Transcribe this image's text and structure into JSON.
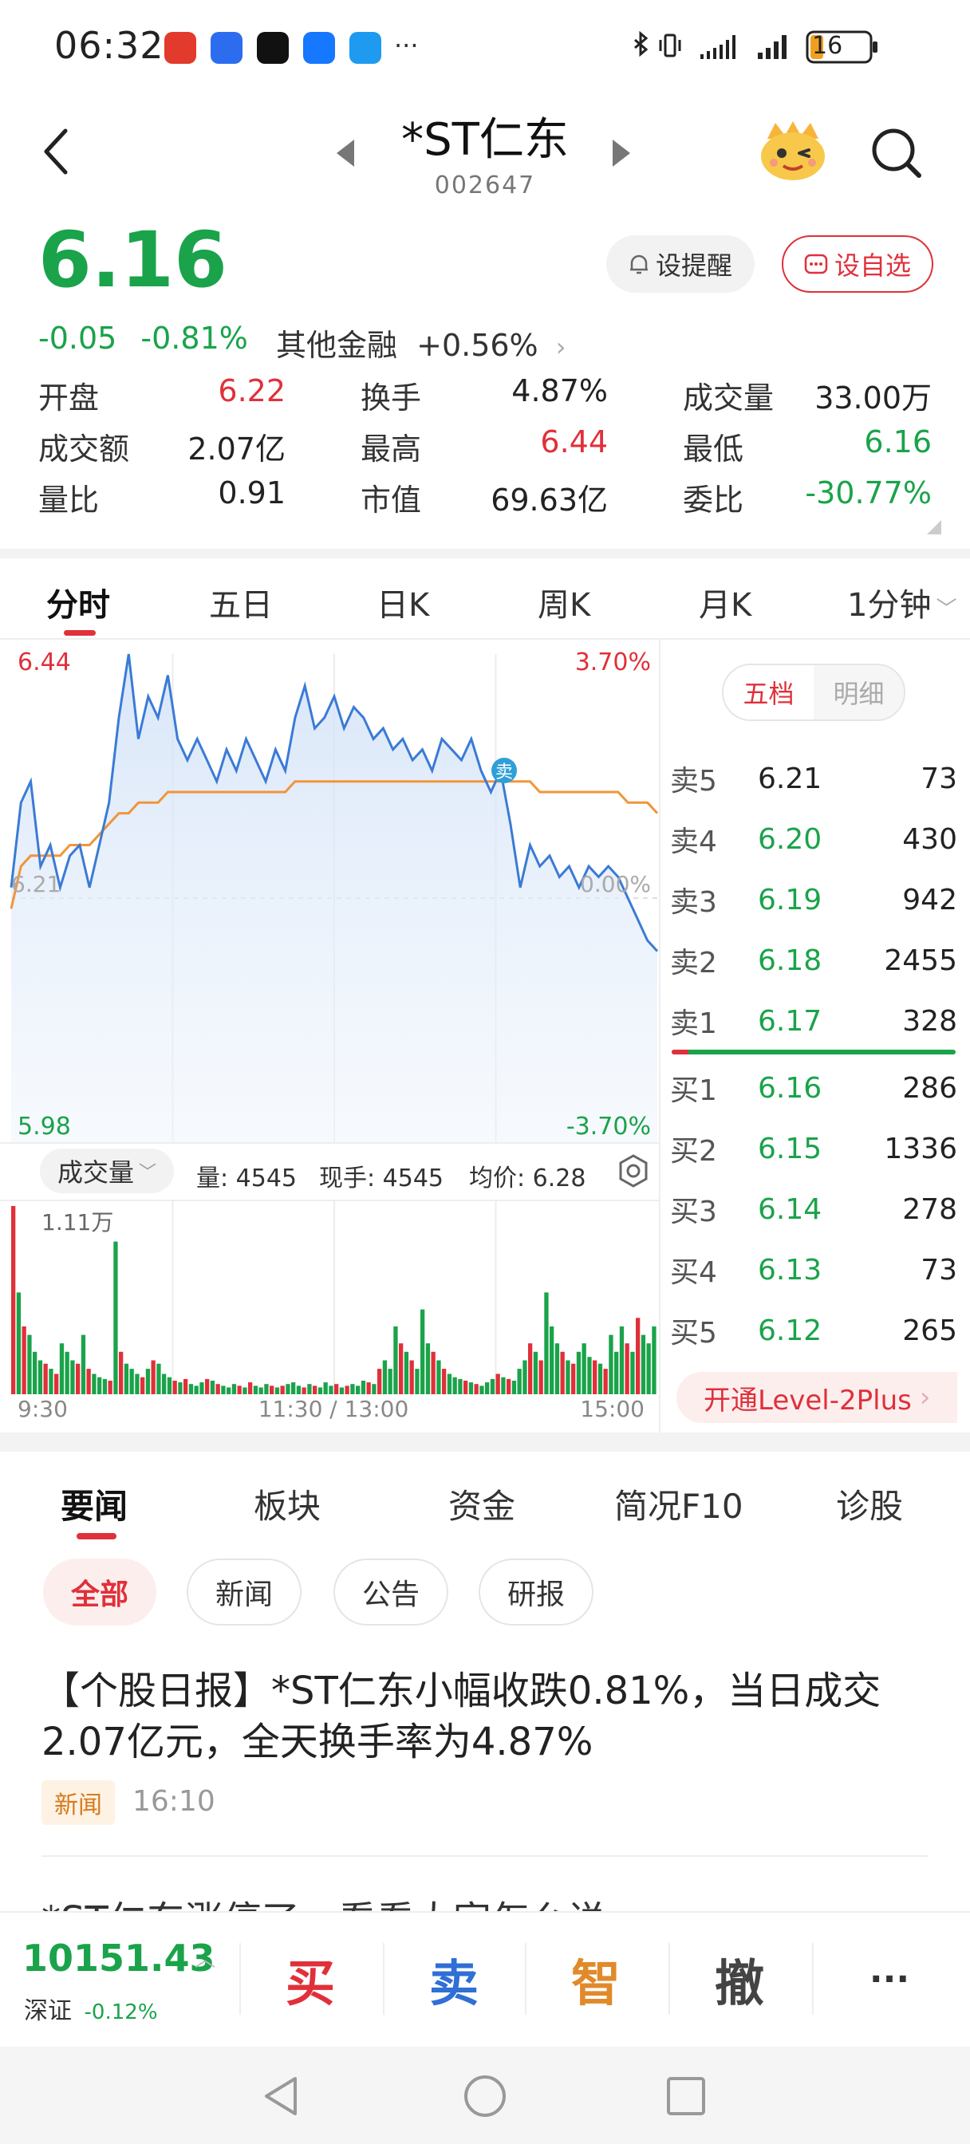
{
  "status": {
    "time": "06:32",
    "dots": "···",
    "battery": "16"
  },
  "header": {
    "title": "*ST仁东",
    "code": "002647"
  },
  "quote": {
    "price": "6.16",
    "change": "-0.05",
    "change_pct": "-0.81%",
    "sector": "其他金融",
    "sector_pct": "+0.56%",
    "remind_label": "设提醒",
    "watch_label": "设自选",
    "stats": [
      {
        "label": "开盘",
        "value": "6.22",
        "color": "#e0303a"
      },
      {
        "label": "换手",
        "value": "4.87%",
        "color": "#222222"
      },
      {
        "label": "成交量",
        "value": "33.00万",
        "color": "#222222"
      },
      {
        "label": "成交额",
        "value": "2.07亿",
        "color": "#222222"
      },
      {
        "label": "最高",
        "value": "6.44",
        "color": "#e0303a"
      },
      {
        "label": "最低",
        "value": "6.16",
        "color": "#1aa34a"
      },
      {
        "label": "量比",
        "value": "0.91",
        "color": "#222222"
      },
      {
        "label": "市值",
        "value": "69.63亿",
        "color": "#222222"
      },
      {
        "label": "委比",
        "value": "-30.77%",
        "color": "#1aa34a"
      }
    ]
  },
  "chart_tabs": [
    "分时",
    "五日",
    "日K",
    "周K",
    "月K",
    "1分钟"
  ],
  "chart_data": {
    "type": "line",
    "y_high_label": "6.44",
    "y_mid_label": "6.21",
    "y_low_label": "5.98",
    "pct_high_label": "3.70%",
    "pct_mid_label": "0.00%",
    "pct_low_label": "-3.70%",
    "ylim": [
      5.98,
      6.44
    ],
    "x_labels": [
      "9:30",
      "11:30 / 13:00",
      "15:00"
    ],
    "sell_marker": "卖",
    "price_series": [
      6.22,
      6.3,
      6.32,
      6.24,
      6.26,
      6.22,
      6.25,
      6.26,
      6.22,
      6.26,
      6.3,
      6.38,
      6.44,
      6.36,
      6.4,
      6.38,
      6.42,
      6.36,
      6.34,
      6.36,
      6.34,
      6.32,
      6.35,
      6.33,
      6.36,
      6.34,
      6.32,
      6.35,
      6.33,
      6.38,
      6.41,
      6.37,
      6.38,
      6.4,
      6.37,
      6.39,
      6.38,
      6.36,
      6.37,
      6.35,
      6.36,
      6.34,
      6.35,
      6.33,
      6.36,
      6.35,
      6.34,
      6.36,
      6.33,
      6.31,
      6.33,
      6.28,
      6.22,
      6.26,
      6.24,
      6.25,
      6.23,
      6.24,
      6.22,
      6.24,
      6.23,
      6.24,
      6.23,
      6.21,
      6.19,
      6.17,
      6.16
    ],
    "avg_series": [
      6.2,
      6.24,
      6.25,
      6.25,
      6.25,
      6.25,
      6.26,
      6.26,
      6.26,
      6.27,
      6.28,
      6.29,
      6.29,
      6.3,
      6.3,
      6.3,
      6.31,
      6.31,
      6.31,
      6.31,
      6.31,
      6.31,
      6.31,
      6.31,
      6.31,
      6.31,
      6.31,
      6.31,
      6.31,
      6.32,
      6.32,
      6.32,
      6.32,
      6.32,
      6.32,
      6.32,
      6.32,
      6.32,
      6.32,
      6.32,
      6.32,
      6.32,
      6.32,
      6.32,
      6.32,
      6.32,
      6.32,
      6.32,
      6.32,
      6.32,
      6.32,
      6.32,
      6.32,
      6.32,
      6.31,
      6.31,
      6.31,
      6.31,
      6.31,
      6.31,
      6.31,
      6.31,
      6.31,
      6.3,
      6.3,
      6.3,
      6.29
    ],
    "volume_max_label": "1.11万",
    "volume": [
      11100,
      6000,
      4000,
      3500,
      2500,
      2000,
      1800,
      1500,
      1200,
      3000,
      2500,
      2000,
      1800,
      3500,
      1500,
      1200,
      1000,
      900,
      800,
      9000,
      2500,
      1800,
      1500,
      1200,
      1000,
      1500,
      2000,
      1800,
      1200,
      1000,
      800,
      700,
      900,
      600,
      500,
      700,
      900,
      800,
      600,
      500,
      400,
      600,
      500,
      400,
      700,
      500,
      400,
      600,
      500,
      400,
      500,
      600,
      700,
      500,
      400,
      600,
      500,
      400,
      700,
      500,
      600,
      400,
      500,
      600,
      500,
      800,
      700,
      600,
      1500,
      2000,
      1500,
      4000,
      3000,
      2500,
      2000,
      1500,
      5000,
      3000,
      2500,
      2000,
      1500,
      1200,
      1000,
      900,
      800,
      700,
      600,
      500,
      700,
      900,
      1200,
      1000,
      900,
      800,
      1500,
      2000,
      3000,
      2500,
      2000,
      6000,
      4000,
      3000,
      2500,
      2000,
      1800,
      2500,
      3000,
      2200,
      2000,
      1800,
      1500,
      3500,
      2500,
      4000,
      3000,
      2500,
      4500,
      3500,
      3000,
      4000
    ]
  },
  "volume_bar": {
    "chip": "成交量",
    "qty_label": "量: 4545",
    "hand_label": "现手: 4545",
    "avg_label": "均价: 6.28"
  },
  "order_book": {
    "tab_active": "五档",
    "tab_other": "明细",
    "asks": [
      {
        "label": "卖5",
        "price": "6.21",
        "vol": "73",
        "color": "#222222"
      },
      {
        "label": "卖4",
        "price": "6.20",
        "vol": "430",
        "color": "#1aa34a"
      },
      {
        "label": "卖3",
        "price": "6.19",
        "vol": "942",
        "color": "#1aa34a"
      },
      {
        "label": "卖2",
        "price": "6.18",
        "vol": "2455",
        "color": "#1aa34a"
      },
      {
        "label": "卖1",
        "price": "6.17",
        "vol": "328",
        "color": "#1aa34a"
      }
    ],
    "bids": [
      {
        "label": "买1",
        "price": "6.16",
        "vol": "286",
        "color": "#1aa34a"
      },
      {
        "label": "买2",
        "price": "6.15",
        "vol": "1336",
        "color": "#1aa34a"
      },
      {
        "label": "买3",
        "price": "6.14",
        "vol": "278",
        "color": "#1aa34a"
      },
      {
        "label": "买4",
        "price": "6.13",
        "vol": "73",
        "color": "#1aa34a"
      },
      {
        "label": "买5",
        "price": "6.12",
        "vol": "265",
        "color": "#1aa34a"
      }
    ],
    "level2": "开通Level-2Plus",
    "buy_fraction": 0.06
  },
  "news": {
    "tabs": [
      "要闻",
      "板块",
      "资金",
      "简况F10",
      "诊股"
    ],
    "chips": [
      "全部",
      "新闻",
      "公告",
      "研报"
    ],
    "headline": "【个股日报】*ST仁东小幅收跌0.81%，当日成交2.07亿元，全天换手率为4.87%",
    "tag": "新闻",
    "time": "16:10",
    "headline2": "*ST仁东涨停了，看看大家怎么说"
  },
  "bottom": {
    "index_value": "10151.43",
    "index_name": "深证",
    "index_pct": "-0.12%",
    "buy": "买",
    "sell": "卖",
    "smart": "智",
    "cancel": "撤",
    "more": "···"
  }
}
